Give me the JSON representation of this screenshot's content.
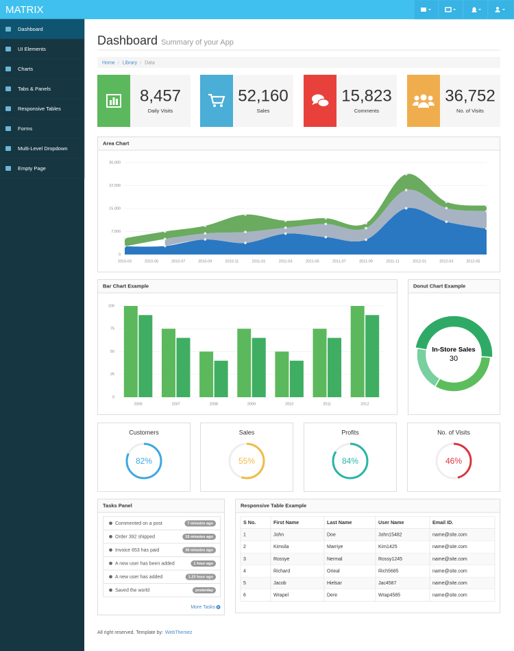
{
  "brand": "MATRIX",
  "sidebar": {
    "items": [
      "Dashboard",
      "UI Elements",
      "Charts",
      "Tabs & Panels",
      "Responsive Tables",
      "Forms",
      "Multi-Level Dropdown",
      "Empty Page"
    ]
  },
  "header": {
    "title": "Dashboard",
    "subtitle": "Summary of your App"
  },
  "breadcrumb": [
    "Home",
    "Library",
    "Data"
  ],
  "stats": [
    {
      "value": "8,457",
      "label": "Daily Visits",
      "color": "#5cb85c"
    },
    {
      "value": "52,160",
      "label": "Sales",
      "color": "#4aaed6"
    },
    {
      "value": "15,823",
      "label": "Comments",
      "color": "#e8413c"
    },
    {
      "value": "36,752",
      "label": "No. of Visits",
      "color": "#f0ad4e"
    }
  ],
  "area_chart": {
    "type": "area",
    "title": "Area Chart",
    "x": [
      "2010-03",
      "2010-06",
      "2010-09",
      "2010-12",
      "2011-03",
      "2011-06",
      "2011-09",
      "2011-12",
      "2012-03",
      "2012-06"
    ],
    "xlim": [
      "2010-03",
      "2012-06"
    ],
    "xticks": [
      "2010-03",
      "2010-05",
      "2010-07",
      "2010-09",
      "2010-11",
      "2011-01",
      "2011-03",
      "2011-05",
      "2011-07",
      "2011-09",
      "2011-11",
      "2012-01",
      "2012-03",
      "2012-05"
    ],
    "ylim": [
      0,
      30000
    ],
    "yticks": [
      0,
      {
        "value": 7500,
        "label": "7,500"
      },
      {
        "value": 15000,
        "label": "15,000"
      },
      {
        "value": 22500,
        "label": "22,500"
      },
      {
        "value": 30000,
        "label": "30,000"
      }
    ],
    "grid": true,
    "stacked": true,
    "series": [
      {
        "color": "#2a78c2",
        "values": [
          2666,
          2778,
          4912,
          3767,
          6810,
          5670,
          4820,
          15073,
          10687,
          8432
        ]
      },
      {
        "color": "#a7b3c2",
        "values": [
          null,
          2294,
          1969,
          3597,
          1914,
          4293,
          3795,
          5967,
          4460,
          5713
        ]
      },
      {
        "color": "#6aab5f",
        "values": [
          2647,
          2441,
          2501,
          5689,
          2293,
          1881,
          1588,
          5175,
          2028,
          1791
        ]
      }
    ]
  },
  "bar_chart": {
    "type": "bar",
    "title": "Bar Chart Example",
    "categories": [
      "2006",
      "2007",
      "2008",
      "2009",
      "2010",
      "2011",
      "2012"
    ],
    "ylim": [
      0,
      100
    ],
    "yticks": [
      0,
      25,
      50,
      75,
      100
    ],
    "grid": true,
    "series": [
      {
        "color": "#5cb85c",
        "values": [
          100,
          75,
          50,
          75,
          50,
          75,
          100
        ]
      },
      {
        "color": "#3fae62",
        "values": [
          90,
          65,
          40,
          65,
          40,
          65,
          90
        ]
      }
    ]
  },
  "donut_chart": {
    "type": "donut",
    "title": "Donut Chart Example",
    "segments": [
      {
        "name": "In-Store Sales",
        "value": 30,
        "color": "#2faa66"
      },
      {
        "value": 20,
        "color": "#5cbd5c"
      },
      {
        "value": 12,
        "color": "#78cfa0"
      }
    ]
  },
  "gauges": {
    "range": [
      0,
      100
    ],
    "items": [
      {
        "title": "Customers",
        "value": 82,
        "value_label": "82%",
        "color": "#3ea7e1"
      },
      {
        "title": "Sales",
        "value": 55,
        "value_label": "55%",
        "color": "#f1ba45"
      },
      {
        "title": "Profits",
        "value": 84,
        "value_label": "84%",
        "color": "#27b5a5"
      },
      {
        "title": "No. of Visits",
        "value": 46,
        "value_label": "46%",
        "color": "#d8363f"
      }
    ]
  },
  "tasks": {
    "title": "Tasks Panel",
    "items": [
      {
        "text": "Commented on a post",
        "time": "7 minutes ago"
      },
      {
        "text": "Order 392 shipped",
        "time": "16 minutes ago"
      },
      {
        "text": "Invoice 653 has paid",
        "time": "36 minutes ago"
      },
      {
        "text": "A new user has been added",
        "time": "1 hour ago"
      },
      {
        "text": "A new user has added",
        "time": "1.23 hour ago"
      },
      {
        "text": "Saved the world",
        "time": "yesterday"
      }
    ],
    "more": "More Tasks"
  },
  "table": {
    "title": "Responsive Table Example",
    "columns": [
      "S No.",
      "First Name",
      "Last Name",
      "User Name",
      "Email ID."
    ],
    "rows": [
      [
        "1",
        "John",
        "Doe",
        "John15482",
        "name@site.com"
      ],
      [
        "2",
        "Kimsila",
        "Marriye",
        "Kim1425",
        "name@site.com"
      ],
      [
        "3",
        "Rossye",
        "Nermal",
        "Rossy1245",
        "name@site.com"
      ],
      [
        "4",
        "Richard",
        "Orieal",
        "Rich5685",
        "name@site.com"
      ],
      [
        "5",
        "Jacob",
        "Hielsar",
        "Jac4587",
        "name@site.com"
      ],
      [
        "6",
        "Wrapel",
        "Dere",
        "Wrap4585",
        "name@site.com"
      ]
    ]
  },
  "footer": {
    "text": "All right reserved. Template by:",
    "link": "WebThemez"
  }
}
